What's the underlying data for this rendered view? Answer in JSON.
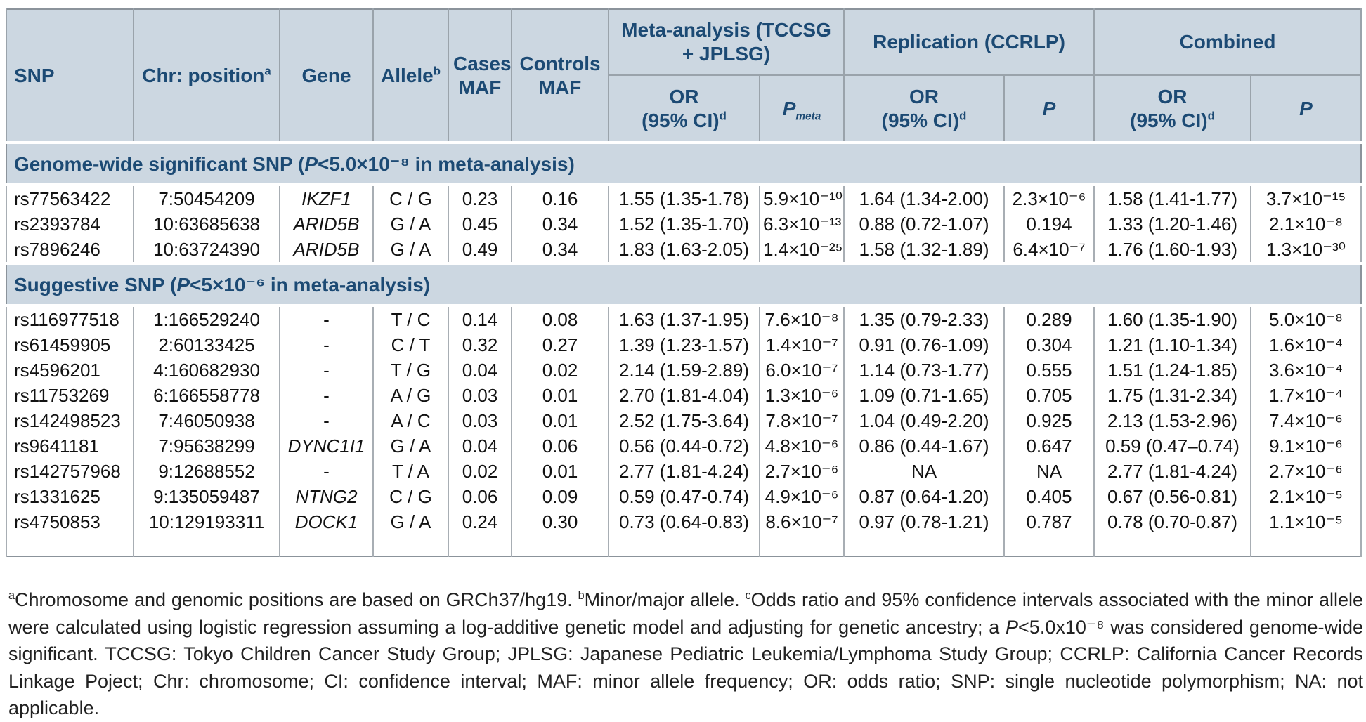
{
  "table": {
    "header": {
      "snp": "SNP",
      "chr_position": {
        "label": "Chr: position",
        "sup": "a"
      },
      "gene": "Gene",
      "allele": {
        "label": "Allele",
        "sup": "b"
      },
      "cases_maf": "Cases MAF",
      "controls_maf": "Controls MAF",
      "groups": [
        {
          "label": "Meta-analysis (TCCSG + JPLSG)"
        },
        {
          "label": "Replication (CCRLP)"
        },
        {
          "label": "Combined"
        }
      ],
      "or_ci": {
        "line1": "OR",
        "line2": "(95% CI)",
        "sup": "d"
      },
      "p_meta": {
        "label": "P",
        "sub": "meta"
      },
      "p": "P"
    },
    "sections": [
      {
        "title": {
          "prefix": "Genome-wide significant SNP (",
          "italic": "P",
          "suffix": "<5.0×10⁻⁸ in meta-analysis)"
        },
        "rows": [
          {
            "snp": "rs77563422",
            "chr_position": "7:50454209",
            "gene": "IKZF1",
            "allele": "C / G",
            "cases_maf": "0.23",
            "controls_maf": "0.16",
            "meta_or": "1.55 (1.35-1.78)",
            "meta_p": "5.9×10⁻¹⁰",
            "repl_or": "1.64 (1.34-2.00)",
            "repl_p": "2.3×10⁻⁶",
            "combined_or": "1.58 (1.41-1.77)",
            "combined_p": "3.7×10⁻¹⁵"
          },
          {
            "snp": "rs2393784",
            "chr_position": "10:63685638",
            "gene": "ARID5B",
            "allele": "G / A",
            "cases_maf": "0.45",
            "controls_maf": "0.34",
            "meta_or": "1.52 (1.35-1.70)",
            "meta_p": "6.3×10⁻¹³",
            "repl_or": "0.88 (0.72-1.07)",
            "repl_p": "0.194",
            "combined_or": "1.33 (1.20-1.46)",
            "combined_p": "2.1×10⁻⁸"
          },
          {
            "snp": "rs7896246",
            "chr_position": "10:63724390",
            "gene": "ARID5B",
            "allele": "G / A",
            "cases_maf": "0.49",
            "controls_maf": "0.34",
            "meta_or": "1.83 (1.63-2.05)",
            "meta_p": "1.4×10⁻²⁵",
            "repl_or": "1.58 (1.32-1.89)",
            "repl_p": "6.4×10⁻⁷",
            "combined_or": "1.76 (1.60-1.93)",
            "combined_p": "1.3×10⁻³⁰"
          }
        ]
      },
      {
        "title": {
          "prefix": "Suggestive SNP (",
          "italic": "P",
          "suffix": "<5×10⁻⁶ in meta-analysis)"
        },
        "rows": [
          {
            "snp": "rs116977518",
            "chr_position": "1:166529240",
            "gene": "-",
            "allele": "T / C",
            "cases_maf": "0.14",
            "controls_maf": "0.08",
            "meta_or": "1.63 (1.37-1.95)",
            "meta_p": "7.6×10⁻⁸",
            "repl_or": "1.35 (0.79-2.33)",
            "repl_p": "0.289",
            "combined_or": "1.60 (1.35-1.90)",
            "combined_p": "5.0×10⁻⁸"
          },
          {
            "snp": "rs61459905",
            "chr_position": "2:60133425",
            "gene": "-",
            "allele": "C / T",
            "cases_maf": "0.32",
            "controls_maf": "0.27",
            "meta_or": "1.39 (1.23-1.57)",
            "meta_p": "1.4×10⁻⁷",
            "repl_or": "0.91 (0.76-1.09)",
            "repl_p": "0.304",
            "combined_or": "1.21 (1.10-1.34)",
            "combined_p": "1.6×10⁻⁴"
          },
          {
            "snp": "rs4596201",
            "chr_position": "4:160682930",
            "gene": "-",
            "allele": "T / G",
            "cases_maf": "0.04",
            "controls_maf": "0.02",
            "meta_or": "2.14 (1.59-2.89)",
            "meta_p": "6.0×10⁻⁷",
            "repl_or": "1.14 (0.73-1.77)",
            "repl_p": "0.555",
            "combined_or": "1.51 (1.24-1.85)",
            "combined_p": "3.6×10⁻⁴"
          },
          {
            "snp": "rs11753269",
            "chr_position": "6:166558778",
            "gene": "-",
            "allele": "A / G",
            "cases_maf": "0.03",
            "controls_maf": "0.01",
            "meta_or": "2.70 (1.81-4.04)",
            "meta_p": "1.3×10⁻⁶",
            "repl_or": "1.09 (0.71-1.65)",
            "repl_p": "0.705",
            "combined_or": "1.75 (1.31-2.34)",
            "combined_p": "1.7×10⁻⁴"
          },
          {
            "snp": "rs142498523",
            "chr_position": "7:46050938",
            "gene": "-",
            "allele": "A / C",
            "cases_maf": "0.03",
            "controls_maf": "0.01",
            "meta_or": "2.52 (1.75-3.64)",
            "meta_p": "7.8×10⁻⁷",
            "repl_or": "1.04 (0.49-2.20)",
            "repl_p": "0.925",
            "combined_or": "2.13 (1.53-2.96)",
            "combined_p": "7.4×10⁻⁶"
          },
          {
            "snp": "rs9641181",
            "chr_position": "7:95638299",
            "gene": "DYNC1I1",
            "allele": "G / A",
            "cases_maf": "0.04",
            "controls_maf": "0.06",
            "meta_or": "0.56 (0.44-0.72)",
            "meta_p": "4.8×10⁻⁶",
            "repl_or": "0.86 (0.44-1.67)",
            "repl_p": "0.647",
            "combined_or": "0.59 (0.47–0.74)",
            "combined_p": "9.1×10⁻⁶"
          },
          {
            "snp": "rs142757968",
            "chr_position": "9:12688552",
            "gene": "-",
            "allele": "T / A",
            "cases_maf": "0.02",
            "controls_maf": "0.01",
            "meta_or": "2.77 (1.81-4.24)",
            "meta_p": "2.7×10⁻⁶",
            "repl_or": "NA",
            "repl_p": "NA",
            "combined_or": "2.77 (1.81-4.24)",
            "combined_p": "2.7×10⁻⁶"
          },
          {
            "snp": "rs1331625",
            "chr_position": "9:135059487",
            "gene": "NTNG2",
            "allele": "C / G",
            "cases_maf": "0.06",
            "controls_maf": "0.09",
            "meta_or": "0.59 (0.47-0.74)",
            "meta_p": "4.9×10⁻⁶",
            "repl_or": "0.87 (0.64-1.20)",
            "repl_p": "0.405",
            "combined_or": "0.67 (0.56-0.81)",
            "combined_p": "2.1×10⁻⁵"
          },
          {
            "snp": "rs4750853",
            "chr_position": "10:129193311",
            "gene": "DOCK1",
            "allele": "G / A",
            "cases_maf": "0.24",
            "controls_maf": "0.30",
            "meta_or": "0.73 (0.64-0.83)",
            "meta_p": "8.6×10⁻⁷",
            "repl_or": "0.97 (0.78-1.21)",
            "repl_p": "0.787",
            "combined_or": "0.78 (0.70-0.87)",
            "combined_p": "1.1×10⁻⁵"
          }
        ]
      }
    ]
  },
  "colors": {
    "header_bg": "#ccd7e1",
    "header_text": "#1c4a74",
    "border": "#9aa3ab"
  },
  "footnotes": {
    "segments": [
      {
        "sup": "a",
        "text": "Chromosome and genomic positions are based on GRCh37/hg19. "
      },
      {
        "sup": "b",
        "text": "Minor/major allele. "
      },
      {
        "sup": "c",
        "text": "Odds ratio and 95% confidence intervals associated with the minor allele were calculated using logistic regression assuming a log-additive genetic model and adjusting for genetic ancestry; a "
      },
      {
        "italic": "P",
        "text": "<5.0x10⁻⁸ was considered genome-wide significant. TCCSG: Tokyo Children Cancer Study Group; JPLSG: Japanese Pediatric Leukemia/Lymphoma Study Group; CCRLP: California Cancer Records Linkage Poject; Chr: chromosome; CI: confidence interval; MAF: minor allele frequency; OR: odds ratio; SNP: single nucleotide polymorphism; NA: not applicable."
      }
    ]
  }
}
